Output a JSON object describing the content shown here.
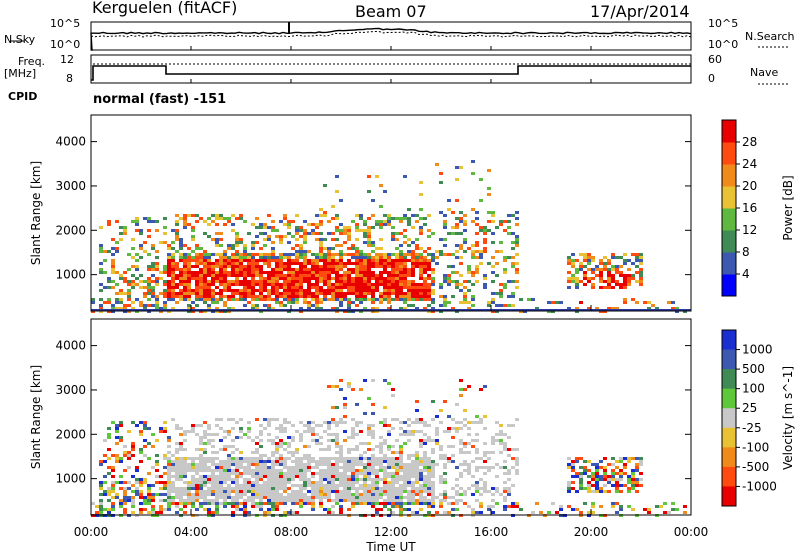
{
  "header": {
    "station": "Kerguelen (fitACF)",
    "beam": "Beam 07",
    "date": "17/Apr/2014"
  },
  "panels": {
    "nsky_label": "N.Sky",
    "nsearch_label": "N.Search",
    "freq_label_line1": "Freq.",
    "freq_label_line2": "[MHz]",
    "nave_label": "Nave",
    "cpid_label": "CPID",
    "cpid_value": "normal (fast) -151",
    "nsky_ticks": [
      "10^5",
      "10^0"
    ],
    "nsearch_ticks": [
      "10^5",
      "10^0"
    ],
    "freq_ticks": [
      "12",
      "8"
    ],
    "nave_ticks": [
      "60",
      "0"
    ]
  },
  "chart_data": [
    {
      "type": "heatmap",
      "title": "",
      "ylabel": "Slant Range [km]",
      "xlabel": "",
      "ylim": [
        180,
        4600
      ],
      "y_ticks": [
        "1000",
        "2000",
        "3000",
        "4000"
      ],
      "y_tick_values": [
        1000,
        2000,
        3000,
        4000
      ],
      "colorbar": {
        "label": "Power [dB]",
        "ticks": [
          "4",
          "8",
          "12",
          "16",
          "20",
          "24",
          "28"
        ],
        "colors": [
          "#0000ff",
          "#3d58b0",
          "#3f8a55",
          "#5fb840",
          "#e8c233",
          "#f08a1a",
          "#ff4a10",
          "#e80000"
        ]
      }
    },
    {
      "type": "heatmap",
      "title": "",
      "ylabel": "Slant Range [km]",
      "xlabel": "Time UT",
      "ylim": [
        180,
        4600
      ],
      "y_ticks": [
        "1000",
        "2000",
        "3000",
        "4000"
      ],
      "y_tick_values": [
        1000,
        2000,
        3000,
        4000
      ],
      "x_ticks": [
        "00:00",
        "04:00",
        "08:00",
        "12:00",
        "16:00",
        "20:00",
        "00:00"
      ],
      "x_range_hours": [
        0,
        24
      ],
      "colorbar": {
        "label": "Velocity [m s^-1]",
        "ticks": [
          "1000",
          "500",
          "100",
          "25",
          "-25",
          "-100",
          "-500",
          "-1000"
        ],
        "colors": [
          "#1a2fd0",
          "#3d58b0",
          "#3f8a55",
          "#5fc83a",
          "#c8c8c8",
          "#e8c233",
          "#f08a1a",
          "#ff4a10",
          "#e80000"
        ]
      }
    }
  ]
}
